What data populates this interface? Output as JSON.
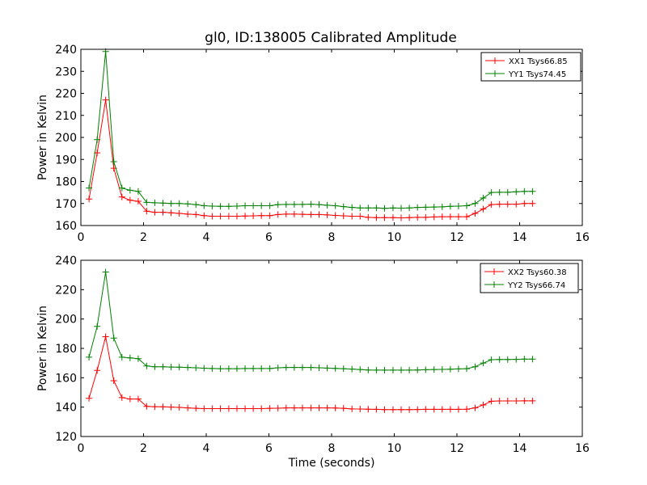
{
  "figure_title": "gl0, ID:138005 Calibrated Amplitude",
  "colors": {
    "xx": "#ff0000",
    "yy": "#008000"
  },
  "chart_data": [
    {
      "type": "line",
      "title": "gl0, ID:138005 Calibrated Amplitude",
      "xlabel": "",
      "ylabel": "Power in Kelvin",
      "xlim": [
        0,
        16
      ],
      "ylim": [
        160,
        240
      ],
      "xticks": [
        0,
        2,
        4,
        6,
        8,
        10,
        12,
        14,
        16
      ],
      "yticks": [
        160,
        170,
        180,
        190,
        200,
        210,
        220,
        230,
        240
      ],
      "legend_position": "top-right",
      "marker": "plus",
      "series": [
        {
          "name": "XX1 Tsys66.85",
          "color": "#ff0000",
          "x": [
            0.26,
            0.52,
            0.79,
            1.05,
            1.31,
            1.57,
            1.83,
            2.1,
            2.36,
            2.62,
            2.88,
            3.14,
            3.41,
            3.67,
            3.93,
            4.19,
            4.45,
            4.72,
            4.98,
            5.24,
            5.5,
            5.76,
            6.03,
            6.29,
            6.55,
            6.81,
            7.07,
            7.34,
            7.6,
            7.86,
            8.12,
            8.38,
            8.65,
            8.91,
            9.17,
            9.43,
            9.69,
            9.96,
            10.22,
            10.48,
            10.74,
            11.0,
            11.27,
            11.53,
            11.79,
            12.05,
            12.31,
            12.58,
            12.84,
            13.1,
            13.36,
            13.62,
            13.89,
            14.15,
            14.41
          ],
          "y": [
            172,
            193,
            217,
            186,
            173,
            171.5,
            171,
            166.5,
            166,
            166,
            165.8,
            165.5,
            165.2,
            165,
            164.5,
            164.2,
            164.2,
            164.2,
            164.2,
            164.3,
            164.4,
            164.5,
            164.5,
            165,
            165.2,
            165.2,
            165.1,
            165,
            165,
            164.8,
            164.6,
            164.4,
            164.2,
            164.2,
            163.7,
            163.6,
            163.6,
            163.6,
            163.5,
            163.6,
            163.7,
            163.7,
            163.9,
            164,
            164,
            164,
            164,
            165.5,
            167.5,
            169.5,
            169.7,
            169.7,
            169.7,
            170,
            170
          ]
        },
        {
          "name": "YY1 Tsys74.45",
          "color": "#008000",
          "x": [
            0.26,
            0.52,
            0.79,
            1.05,
            1.31,
            1.57,
            1.83,
            2.1,
            2.36,
            2.62,
            2.88,
            3.14,
            3.41,
            3.67,
            3.93,
            4.19,
            4.45,
            4.72,
            4.98,
            5.24,
            5.5,
            5.76,
            6.03,
            6.29,
            6.55,
            6.81,
            7.07,
            7.34,
            7.6,
            7.86,
            8.12,
            8.38,
            8.65,
            8.91,
            9.17,
            9.43,
            9.69,
            9.96,
            10.22,
            10.48,
            10.74,
            11.0,
            11.27,
            11.53,
            11.79,
            12.05,
            12.31,
            12.58,
            12.84,
            13.1,
            13.36,
            13.62,
            13.89,
            14.15,
            14.41
          ],
          "y": [
            177,
            199,
            239,
            189,
            177,
            176,
            175.5,
            170.5,
            170.3,
            170.2,
            170,
            170,
            169.8,
            169.5,
            169,
            168.8,
            168.7,
            168.7,
            168.8,
            169,
            169,
            169,
            169,
            169.5,
            169.6,
            169.6,
            169.6,
            169.7,
            169.5,
            169.2,
            169,
            168.6,
            168.2,
            168,
            168,
            168,
            167.8,
            168,
            167.9,
            168,
            168.2,
            168.3,
            168.4,
            168.5,
            168.7,
            168.8,
            169,
            170,
            172.5,
            175,
            175.1,
            175.1,
            175.3,
            175.5,
            175.5
          ]
        }
      ]
    },
    {
      "type": "line",
      "title": "",
      "xlabel": "Time (seconds)",
      "ylabel": "Power in Kelvin",
      "xlim": [
        0,
        16
      ],
      "ylim": [
        120,
        240
      ],
      "xticks": [
        0,
        2,
        4,
        6,
        8,
        10,
        12,
        14,
        16
      ],
      "yticks": [
        120,
        140,
        160,
        180,
        200,
        220,
        240
      ],
      "legend_position": "top-right",
      "marker": "plus",
      "series": [
        {
          "name": "XX2 Tsys60.38",
          "color": "#ff0000",
          "x": [
            0.26,
            0.52,
            0.79,
            1.05,
            1.31,
            1.57,
            1.83,
            2.1,
            2.36,
            2.62,
            2.88,
            3.14,
            3.41,
            3.67,
            3.93,
            4.19,
            4.45,
            4.72,
            4.98,
            5.24,
            5.5,
            5.76,
            6.03,
            6.29,
            6.55,
            6.81,
            7.07,
            7.34,
            7.6,
            7.86,
            8.12,
            8.38,
            8.65,
            8.91,
            9.17,
            9.43,
            9.69,
            9.96,
            10.22,
            10.48,
            10.74,
            11.0,
            11.27,
            11.53,
            11.79,
            12.05,
            12.31,
            12.58,
            12.84,
            13.1,
            13.36,
            13.62,
            13.89,
            14.15,
            14.41
          ],
          "y": [
            146,
            165,
            188,
            158,
            146.5,
            145.5,
            145.5,
            140.5,
            140.3,
            140.2,
            140,
            139.8,
            139.5,
            139.2,
            139,
            139,
            139,
            139,
            139,
            139,
            139,
            139,
            139.2,
            139.3,
            139.5,
            139.5,
            139.5,
            139.5,
            139.5,
            139.5,
            139.4,
            139.2,
            138.8,
            138.7,
            138.6,
            138.5,
            138.3,
            138.3,
            138.3,
            138.3,
            138.4,
            138.5,
            138.5,
            138.5,
            138.5,
            138.5,
            138.6,
            139.5,
            141.5,
            144,
            144.2,
            144.2,
            144.2,
            144.3,
            144.3
          ]
        },
        {
          "name": "YY2 Tsys66.74",
          "color": "#008000",
          "x": [
            0.26,
            0.52,
            0.79,
            1.05,
            1.31,
            1.57,
            1.83,
            2.1,
            2.36,
            2.62,
            2.88,
            3.14,
            3.41,
            3.67,
            3.93,
            4.19,
            4.45,
            4.72,
            4.98,
            5.24,
            5.5,
            5.76,
            6.03,
            6.29,
            6.55,
            6.81,
            7.07,
            7.34,
            7.6,
            7.86,
            8.12,
            8.38,
            8.65,
            8.91,
            9.17,
            9.43,
            9.69,
            9.96,
            10.22,
            10.48,
            10.74,
            11.0,
            11.27,
            11.53,
            11.79,
            12.05,
            12.31,
            12.58,
            12.84,
            13.1,
            13.36,
            13.62,
            13.89,
            14.15,
            14.41
          ],
          "y": [
            174,
            195,
            232,
            187,
            174,
            173.5,
            173,
            168,
            167.5,
            167.5,
            167.3,
            167.2,
            167,
            166.8,
            166.5,
            166.3,
            166.2,
            166.2,
            166.2,
            166.3,
            166.3,
            166.3,
            166.3,
            166.8,
            167,
            167,
            167,
            167,
            166.8,
            166.6,
            166.4,
            166.2,
            165.9,
            165.6,
            165.3,
            165.2,
            165.2,
            165.2,
            165.2,
            165.2,
            165.3,
            165.5,
            165.6,
            165.7,
            165.8,
            166,
            166.2,
            167.5,
            170,
            172.3,
            172.4,
            172.4,
            172.5,
            172.7,
            172.7
          ]
        }
      ]
    }
  ]
}
